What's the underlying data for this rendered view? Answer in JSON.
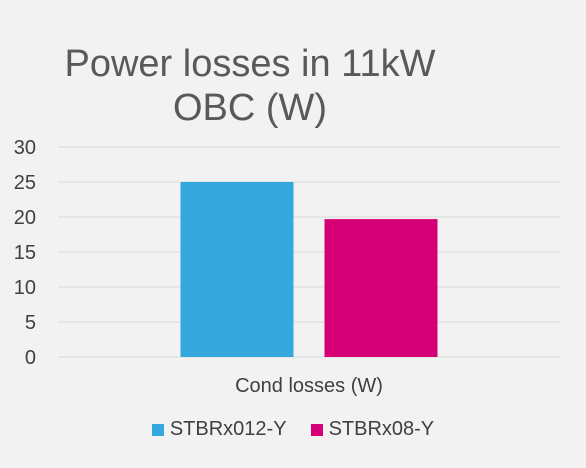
{
  "chart_data": {
    "type": "bar",
    "title_lines": [
      "Power losses in 11kW",
      "OBC (W)"
    ],
    "categories": [
      "Cond losses (W)"
    ],
    "series": [
      {
        "name": "STBRx012-Y",
        "values": [
          25
        ],
        "color": "#35a8dd"
      },
      {
        "name": "STBRx08-Y",
        "values": [
          19.7
        ],
        "color": "#d50075"
      }
    ],
    "ylim": [
      0,
      30
    ],
    "yticks": [
      "0",
      "5",
      "10",
      "15",
      "20",
      "25",
      "30"
    ],
    "grid": true,
    "legend": "bottom"
  }
}
